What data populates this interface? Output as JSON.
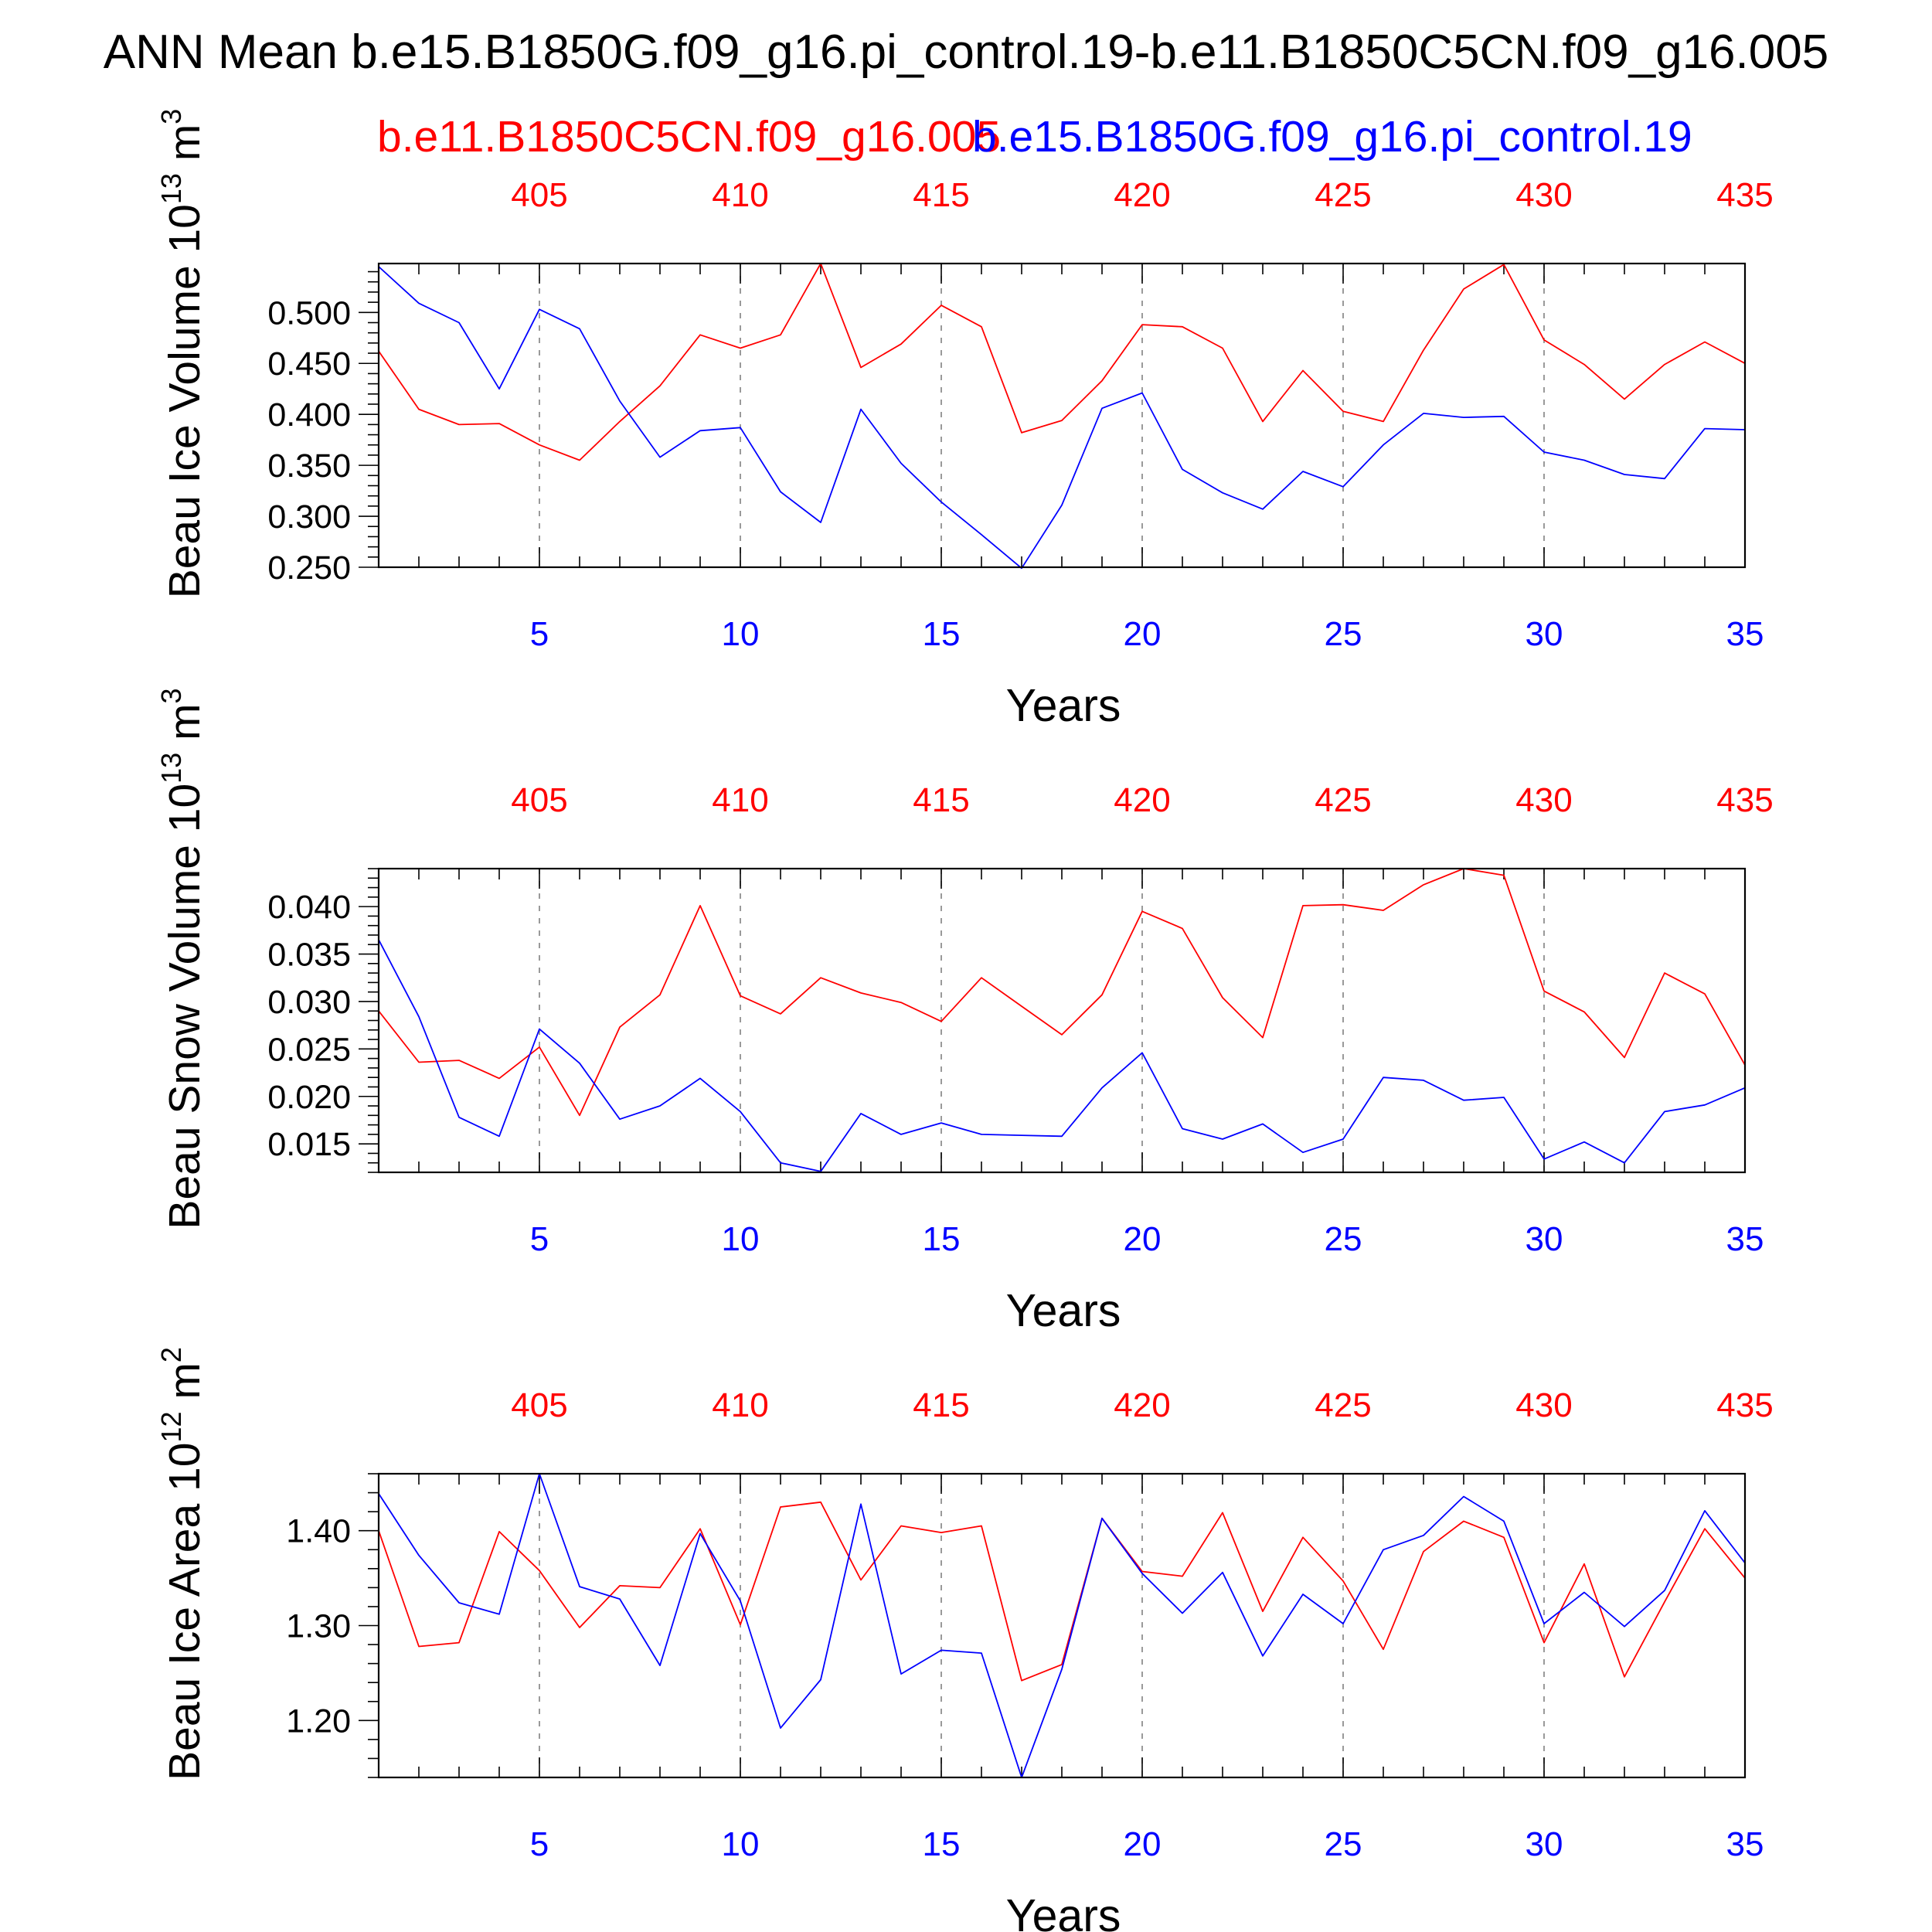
{
  "title": "ANN Mean b.e15.B1850G.f09_g16.pi_control.19-b.e11.B1850C5CN.f09_g16.005",
  "legend": {
    "red_label": "b.e11.B1850C5CN.f09_g16.005",
    "blue_label": "b.e15.B1850G.f09_g16.pi_control.19"
  },
  "colors": {
    "red": "#ff0000",
    "blue": "#0000ff",
    "axis": "#000000",
    "grid": "#808080"
  },
  "chart_data": [
    {
      "type": "line",
      "ylabel": "Beau Ice Volume",
      "units": {
        "mantissa": "10",
        "exponent": "13",
        "unit": "m",
        "unit_exponent": "3"
      },
      "xlabel": "Years",
      "x": [
        1,
        2,
        3,
        4,
        5,
        6,
        7,
        8,
        9,
        10,
        11,
        12,
        13,
        14,
        15,
        16,
        17,
        18,
        19,
        20,
        21,
        22,
        23,
        24,
        25,
        26,
        27,
        28,
        29,
        30,
        31,
        32,
        33,
        34,
        35
      ],
      "xlim": [
        1,
        35
      ],
      "ylim": [
        0.25,
        0.548
      ],
      "bottom_ticks": [
        "5",
        "10",
        "15",
        "20",
        "25",
        "30",
        "35"
      ],
      "top_ticks": [
        "405",
        "410",
        "415",
        "420",
        "425",
        "430",
        "435"
      ],
      "y_ticks": [
        "0.250",
        "0.300",
        "0.350",
        "0.400",
        "0.450",
        "0.500"
      ],
      "grid": "vertical dashed at major x ticks",
      "series": [
        {
          "color": "red",
          "values": [
            0.462,
            0.405,
            0.39,
            0.391,
            0.37,
            0.355,
            0.393,
            0.428,
            0.478,
            0.465,
            0.478,
            0.548,
            0.446,
            0.469,
            0.507,
            0.486,
            0.382,
            0.394,
            0.433,
            0.488,
            0.486,
            0.465,
            0.393,
            0.443,
            0.403,
            0.393,
            0.463,
            0.523,
            0.547,
            0.473,
            0.449,
            0.415,
            0.449,
            0.471,
            0.45
          ]
        },
        {
          "color": "blue",
          "values": [
            0.545,
            0.509,
            0.49,
            0.425,
            0.503,
            0.484,
            0.413,
            0.358,
            0.384,
            0.387,
            0.324,
            0.294,
            0.405,
            0.352,
            0.314,
            0.282,
            0.249,
            0.311,
            0.406,
            0.421,
            0.346,
            0.323,
            0.307,
            0.344,
            0.329,
            0.37,
            0.401,
            0.397,
            0.398,
            0.363,
            0.355,
            0.341,
            0.337,
            0.386,
            0.385
          ]
        }
      ]
    },
    {
      "type": "line",
      "ylabel": "Beau Snow Volume",
      "units": {
        "mantissa": "10",
        "exponent": "13",
        "unit": "m",
        "unit_exponent": "3"
      },
      "xlabel": "Years",
      "x": [
        1,
        2,
        3,
        4,
        5,
        6,
        7,
        8,
        9,
        10,
        11,
        12,
        13,
        14,
        15,
        16,
        17,
        18,
        19,
        20,
        21,
        22,
        23,
        24,
        25,
        26,
        27,
        28,
        29,
        30,
        31,
        32,
        33,
        34,
        35
      ],
      "xlim": [
        1,
        35
      ],
      "ylim": [
        0.012,
        0.044
      ],
      "bottom_ticks": [
        "5",
        "10",
        "15",
        "20",
        "25",
        "30",
        "35"
      ],
      "top_ticks": [
        "405",
        "410",
        "415",
        "420",
        "425",
        "430",
        "435"
      ],
      "y_ticks": [
        "0.015",
        "0.020",
        "0.025",
        "0.030",
        "0.035",
        "0.040"
      ],
      "grid": "vertical dashed at major x ticks",
      "series": [
        {
          "color": "red",
          "values": [
            0.029,
            0.0236,
            0.0238,
            0.0219,
            0.0252,
            0.018,
            0.0273,
            0.0307,
            0.0401,
            0.0306,
            0.0287,
            0.0325,
            0.0309,
            0.0299,
            0.0279,
            0.0325,
            0.0295,
            0.0265,
            0.0307,
            0.0395,
            0.0377,
            0.0304,
            0.0262,
            0.0401,
            0.0402,
            0.0396,
            0.0423,
            0.044,
            0.0433,
            0.0311,
            0.0289,
            0.0241,
            0.033,
            0.0308,
            0.0233
          ]
        },
        {
          "color": "blue",
          "values": [
            0.0365,
            0.0284,
            0.0178,
            0.0158,
            0.0271,
            0.0235,
            0.0176,
            0.019,
            0.0219,
            0.0184,
            0.013,
            0.0121,
            0.0182,
            0.016,
            0.0172,
            0.016,
            0.0159,
            0.0158,
            0.0209,
            0.0246,
            0.0166,
            0.0155,
            0.0171,
            0.0141,
            0.0155,
            0.022,
            0.0217,
            0.0196,
            0.0199,
            0.0134,
            0.0152,
            0.013,
            0.0184,
            0.0191,
            0.0209
          ]
        }
      ]
    },
    {
      "type": "line",
      "ylabel": "Beau Ice Area",
      "units": {
        "mantissa": "10",
        "exponent": "12",
        "unit": "m",
        "unit_exponent": "2"
      },
      "xlabel": "Years",
      "x": [
        1,
        2,
        3,
        4,
        5,
        6,
        7,
        8,
        9,
        10,
        11,
        12,
        13,
        14,
        15,
        16,
        17,
        18,
        19,
        20,
        21,
        22,
        23,
        24,
        25,
        26,
        27,
        28,
        29,
        30,
        31,
        32,
        33,
        34,
        35
      ],
      "xlim": [
        1,
        35
      ],
      "ylim": [
        1.14,
        1.46
      ],
      "bottom_ticks": [
        "5",
        "10",
        "15",
        "20",
        "25",
        "30",
        "35"
      ],
      "top_ticks": [
        "405",
        "410",
        "415",
        "420",
        "425",
        "430",
        "435"
      ],
      "y_ticks": [
        "1.20",
        "1.30",
        "1.40"
      ],
      "grid": "vertical dashed at major x ticks",
      "series": [
        {
          "color": "red",
          "values": [
            1.4,
            1.278,
            1.282,
            1.399,
            1.358,
            1.298,
            1.342,
            1.34,
            1.402,
            1.301,
            1.425,
            1.43,
            1.348,
            1.405,
            1.398,
            1.405,
            1.242,
            1.259,
            1.413,
            1.357,
            1.352,
            1.419,
            1.315,
            1.393,
            1.347,
            1.275,
            1.378,
            1.41,
            1.393,
            1.282,
            1.365,
            1.246,
            1.325,
            1.402,
            1.35
          ]
        },
        {
          "color": "blue",
          "values": [
            1.439,
            1.374,
            1.324,
            1.312,
            1.46,
            1.341,
            1.328,
            1.258,
            1.397,
            1.326,
            1.192,
            1.243,
            1.428,
            1.249,
            1.274,
            1.271,
            1.14,
            1.254,
            1.413,
            1.355,
            1.313,
            1.356,
            1.268,
            1.333,
            1.302,
            1.38,
            1.395,
            1.436,
            1.41,
            1.302,
            1.335,
            1.299,
            1.337,
            1.421,
            1.366
          ]
        }
      ]
    }
  ]
}
